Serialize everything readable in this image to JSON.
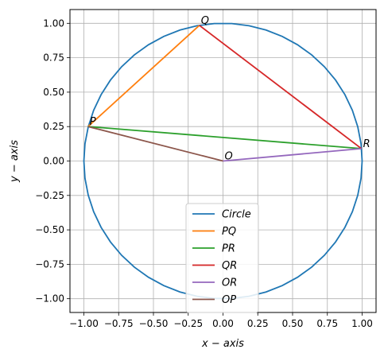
{
  "chart_data": {
    "type": "line",
    "title": "",
    "xlabel": "x − axis",
    "ylabel": "y − axis",
    "xlim": [
      -1.1,
      1.1
    ],
    "ylim": [
      -1.1,
      1.1
    ],
    "xticks": [
      -1.0,
      -0.75,
      -0.5,
      -0.25,
      0.0,
      0.25,
      0.5,
      0.75,
      1.0
    ],
    "yticks": [
      -1.0,
      -0.75,
      -0.5,
      -0.25,
      0.0,
      0.25,
      0.5,
      0.75,
      1.0
    ],
    "xtick_labels": [
      "−1.00",
      "−0.75",
      "−0.50",
      "−0.25",
      "0.00",
      "0.25",
      "0.50",
      "0.75",
      "1.00"
    ],
    "ytick_labels": [
      "−1.00",
      "−0.75",
      "−0.50",
      "−0.25",
      "0.00",
      "0.25",
      "0.50",
      "0.75",
      "1.00"
    ],
    "grid": true,
    "legend_position": "lower-center",
    "circle": {
      "name": "Circle",
      "center": [
        0,
        0
      ],
      "radius": 1,
      "color": "#1f77b4"
    },
    "points": [
      {
        "label": "P",
        "x": -0.97,
        "y": 0.25
      },
      {
        "label": "Q",
        "x": -0.17,
        "y": 0.985
      },
      {
        "label": "R",
        "x": 0.995,
        "y": 0.09
      },
      {
        "label": "O",
        "x": 0.0,
        "y": 0.0
      }
    ],
    "series": [
      {
        "name": "PQ",
        "color": "#ff7f0e",
        "x": [
          -0.97,
          -0.17
        ],
        "y": [
          0.25,
          0.985
        ]
      },
      {
        "name": "PR",
        "color": "#2ca02c",
        "x": [
          -0.97,
          0.995
        ],
        "y": [
          0.25,
          0.09
        ]
      },
      {
        "name": "QR",
        "color": "#d62728",
        "x": [
          -0.17,
          0.995
        ],
        "y": [
          0.985,
          0.09
        ]
      },
      {
        "name": "OR",
        "color": "#9467bd",
        "x": [
          0.0,
          0.995
        ],
        "y": [
          0.0,
          0.09
        ]
      },
      {
        "name": "OP",
        "color": "#8c564b",
        "x": [
          0.0,
          -0.97
        ],
        "y": [
          0.0,
          0.25
        ]
      }
    ]
  }
}
